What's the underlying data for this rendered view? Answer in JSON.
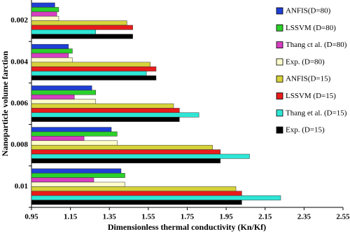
{
  "chart_data": {
    "type": "barh",
    "x_label": "Dimensionless thermal conductivity (Kn/Kf)",
    "y_label": "Nanoparticle volume farction",
    "categories": [
      "0.002",
      "0.004",
      "0.006",
      "0.008",
      "0.01"
    ],
    "series": [
      {
        "name": "ANFIS(D=80)",
        "color": "#1f3fd6",
        "values": [
          1.07,
          1.14,
          1.26,
          1.36,
          1.41
        ]
      },
      {
        "name": "LSSVM (D=80)",
        "color": "#2bd12b",
        "values": [
          1.09,
          1.16,
          1.28,
          1.39,
          1.43
        ]
      },
      {
        "name": "Thang ct al. (D=80)",
        "color": "#d63fc0",
        "values": [
          1.08,
          1.14,
          1.17,
          1.22,
          1.27
        ]
      },
      {
        "name": "Exp. (D=80)",
        "color": "#ffffcc",
        "values": [
          1.09,
          1.16,
          1.28,
          1.39,
          1.43
        ]
      },
      {
        "name": "ANFIS(D=15)",
        "color": "#d6d23a",
        "values": [
          1.44,
          1.56,
          1.68,
          1.88,
          2.0
        ]
      },
      {
        "name": "LSSVM (D=15)",
        "color": "#e81c1c",
        "values": [
          1.47,
          1.59,
          1.71,
          1.92,
          2.03
        ]
      },
      {
        "name": "Thang et al. (D=15)",
        "color": "#2ee6d6",
        "values": [
          1.28,
          1.54,
          1.81,
          2.07,
          2.23
        ]
      },
      {
        "name": "Exp. (D=15)",
        "color": "#000000",
        "values": [
          1.47,
          1.59,
          1.71,
          1.92,
          2.03
        ]
      }
    ],
    "xlim": [
      0.95,
      2.55
    ],
    "xticks": [
      0.95,
      1.15,
      1.35,
      1.55,
      1.75,
      1.95,
      2.15,
      2.35,
      2.55
    ],
    "grid": false
  }
}
